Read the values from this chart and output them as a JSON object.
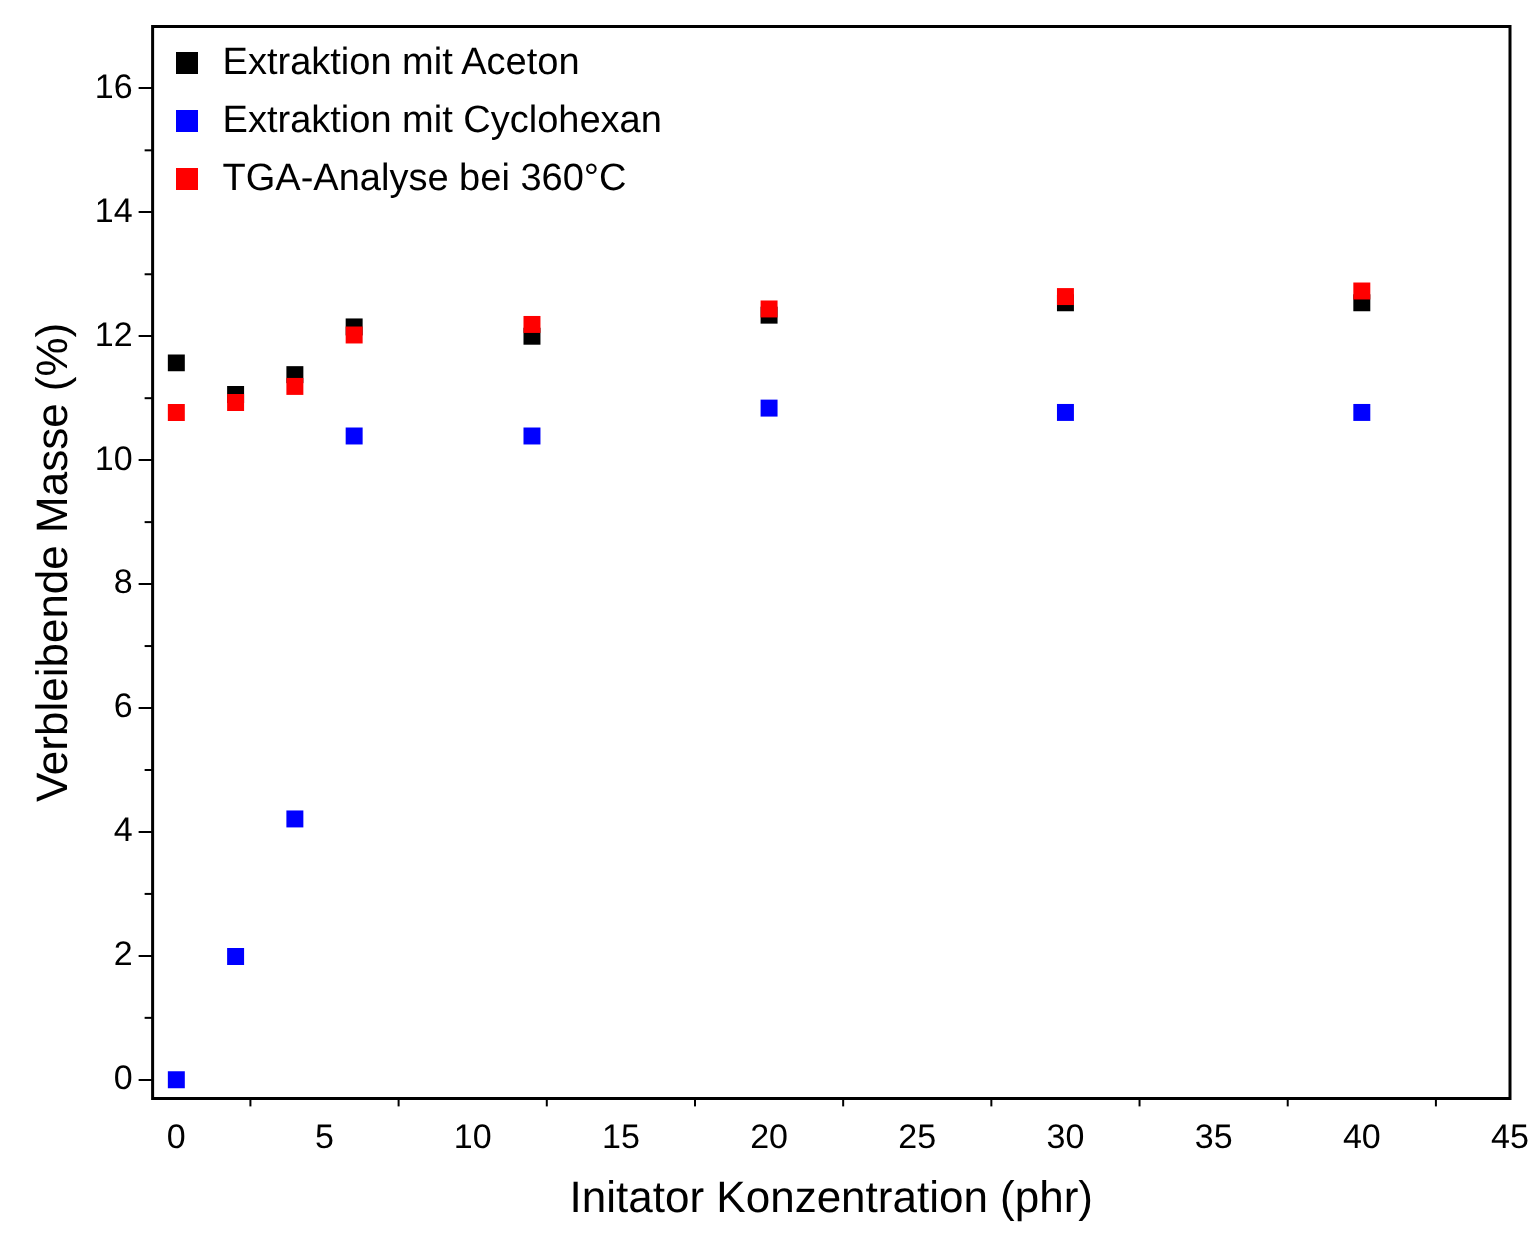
{
  "chart_data": {
    "type": "scatter",
    "xlabel": "Initator Konzentration (phr)",
    "ylabel": "Verbleibende Masse (%)",
    "x": [
      0,
      2,
      4,
      6,
      12,
      20,
      30,
      40
    ],
    "series": [
      {
        "name": "Extraktion mit Aceton",
        "color": "#000000",
        "values": [
          11.57,
          11.06,
          11.38,
          12.15,
          12.0,
          12.34,
          12.54,
          12.54
        ]
      },
      {
        "name": "Extraktion mit Cyclohexan",
        "color": "#0000ff",
        "values": [
          0,
          1.99,
          4.21,
          10.39,
          10.39,
          10.84,
          10.77,
          10.77
        ]
      },
      {
        "name": "TGA-Analyse bei 360°C",
        "color": "#ff0000",
        "values": [
          10.77,
          10.93,
          11.19,
          12.02,
          12.19,
          12.44,
          12.64,
          12.73
        ]
      }
    ],
    "xlim": [
      -0.8,
      45
    ],
    "xticks": [
      0,
      5,
      10,
      15,
      20,
      25,
      30,
      35,
      40,
      45
    ],
    "ylim": [
      -0.3,
      17
    ],
    "yticks": [
      0,
      2,
      4,
      6,
      8,
      10,
      12,
      14,
      16
    ],
    "grid": false,
    "legend": "top left",
    "marker": "square"
  }
}
